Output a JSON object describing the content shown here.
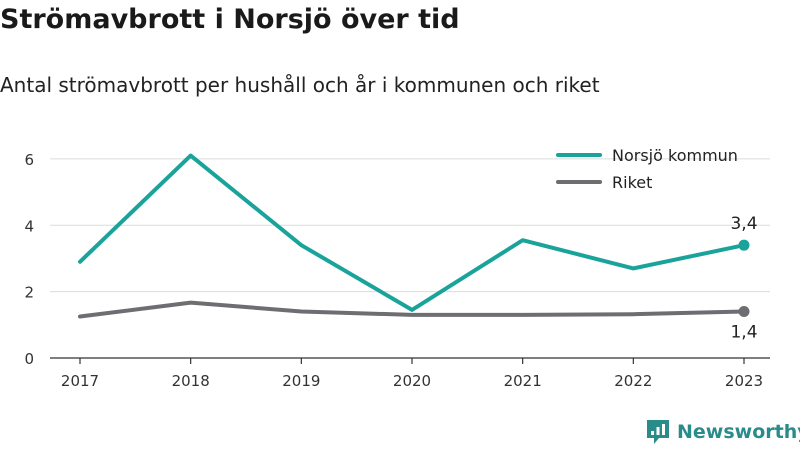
{
  "header": {
    "title": "Strömavbrott i Norsjö över tid",
    "subtitle": "Antal strömavbrott per hushåll och år i kommunen och riket"
  },
  "brand": {
    "name": "Newsworthy",
    "icon": "newsworthy-logo-icon",
    "color": "#2a8c8a"
  },
  "chart_data": {
    "type": "line",
    "x": [
      "2017",
      "2018",
      "2019",
      "2020",
      "2021",
      "2022",
      "2023"
    ],
    "ylim": [
      0,
      6.6
    ],
    "yticks": [
      0,
      2,
      4,
      6
    ],
    "grid": true,
    "legend_position": "top-right",
    "series": [
      {
        "name": "Norsjö kommun",
        "color": "#1aa39a",
        "values": [
          2.9,
          6.1,
          3.4,
          1.45,
          3.55,
          2.7,
          3.4
        ],
        "end_label": "3,4",
        "end_label_position": "above"
      },
      {
        "name": "Riket",
        "color": "#6d6d72",
        "values": [
          1.25,
          1.67,
          1.4,
          1.3,
          1.3,
          1.32,
          1.4
        ],
        "end_label": "1,4",
        "end_label_position": "below"
      }
    ]
  }
}
